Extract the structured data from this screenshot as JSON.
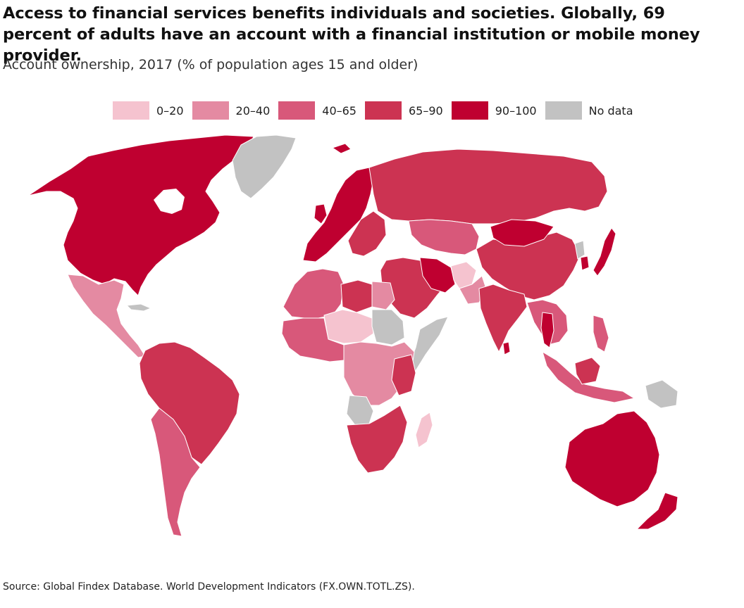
{
  "title": "Access to financial services benefits individuals and societies. Globally, 69 percent of adults have an account with a financial institution or mobile money provider.",
  "subtitle": "Account ownership, 2017 (% of population ages 15 and older)",
  "legend": [
    {
      "label": "0–20",
      "color": "#f5c3cf"
    },
    {
      "label": "20–40",
      "color": "#e48aa2"
    },
    {
      "label": "40–65",
      "color": "#d8587a"
    },
    {
      "label": "65–90",
      "color": "#cc3352"
    },
    {
      "label": "90–100",
      "color": "#bf0030"
    },
    {
      "label": "No data",
      "color": "#c2c2c2"
    }
  ],
  "source": "Source: Global Findex Database. World Development Indicators (FX.OWN.TOTL.ZS).",
  "map_regions": [
    {
      "name": "North America",
      "category": "90–100"
    },
    {
      "name": "Greenland",
      "category": "No data"
    },
    {
      "name": "Mexico & Central America",
      "category": "20–40"
    },
    {
      "name": "South America north",
      "category": "65–90"
    },
    {
      "name": "South America south",
      "category": "40–65"
    },
    {
      "name": "Western Europe",
      "category": "90–100"
    },
    {
      "name": "Russia",
      "category": "65–90"
    },
    {
      "name": "Central Asia",
      "category": "40–65"
    },
    {
      "name": "Middle East",
      "category": "65–90"
    },
    {
      "name": "Afghanistan",
      "category": "0–20"
    },
    {
      "name": "North Africa west",
      "category": "40–65"
    },
    {
      "name": "Sahel",
      "category": "0–20"
    },
    {
      "name": "Central Africa",
      "category": "20–40"
    },
    {
      "name": "Sudan & Somalia",
      "category": "No data"
    },
    {
      "name": "East Africa",
      "category": "65–90"
    },
    {
      "name": "Southern Africa",
      "category": "65–90"
    },
    {
      "name": "Madagascar",
      "category": "0–20"
    },
    {
      "name": "China",
      "category": "65–90"
    },
    {
      "name": "Mongolia",
      "category": "90–100"
    },
    {
      "name": "Japan",
      "category": "90–100"
    },
    {
      "name": "India",
      "category": "65–90"
    },
    {
      "name": "Southeast Asia",
      "category": "40–65"
    },
    {
      "name": "Papua New Guinea",
      "category": "No data"
    },
    {
      "name": "Australia",
      "category": "90–100"
    },
    {
      "name": "New Zealand",
      "category": "90–100"
    }
  ]
}
